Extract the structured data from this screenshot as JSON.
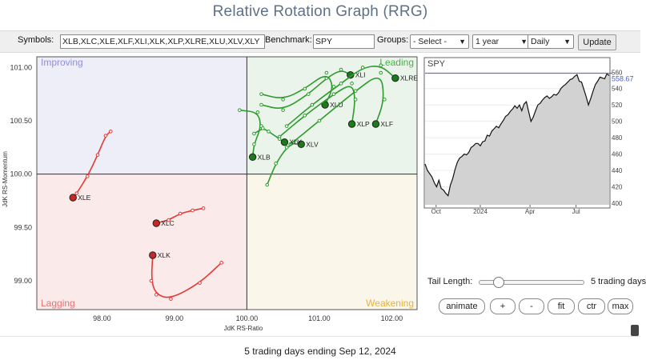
{
  "title": "Relative Rotation Graph (RRG)",
  "toolbar": {
    "symbols_label": "Symbols:",
    "symbols_value": "XLB,XLC,XLE,XLF,XLI,XLK,XLP,XLRE,XLU,XLV,XLY",
    "benchmark_label": "Benchmark:",
    "benchmark_value": "SPY",
    "groups_label": "Groups:",
    "groups_value": "- Select -",
    "period_value": "1 year",
    "frequency_value": "Daily",
    "update_label": "Update"
  },
  "rrg": {
    "quadrants": {
      "improving": "Improving",
      "leading": "Leading",
      "lagging": "Lagging",
      "weakening": "Weakening"
    },
    "quadrant_colors": {
      "improving": "#eeeef8",
      "leading": "#eaf4ea",
      "lagging": "#faeaea",
      "weakening": "#faf6ea"
    },
    "x_label": "JdK RS-Ratio",
    "y_label": "JdK RS-Momentum",
    "x_ticks": [
      "98.00",
      "99.00",
      "100.00",
      "101.00",
      "102.00"
    ],
    "y_ticks": [
      "101.00",
      "100.50",
      "100.00",
      "99.50",
      "99.00"
    ],
    "x_range": [
      97.1,
      102.35
    ],
    "y_range": [
      98.73,
      101.1
    ],
    "series": [
      {
        "name": "XLE",
        "color": "#e53935",
        "points": [
          [
            98.12,
            100.4
          ],
          [
            98.05,
            100.36
          ],
          [
            97.94,
            100.18
          ],
          [
            97.8,
            99.98
          ],
          [
            97.65,
            99.82
          ],
          [
            97.6,
            99.78
          ]
        ]
      },
      {
        "name": "XLC",
        "color": "#e53935",
        "points": [
          [
            99.4,
            99.68
          ],
          [
            99.25,
            99.66
          ],
          [
            99.08,
            99.63
          ],
          [
            98.92,
            99.57
          ],
          [
            98.75,
            99.54
          ]
        ]
      },
      {
        "name": "XLK",
        "color": "#e53935",
        "points": [
          [
            99.65,
            99.17
          ],
          [
            99.35,
            98.98
          ],
          [
            98.95,
            98.83
          ],
          [
            98.75,
            98.87
          ],
          [
            98.68,
            99.0
          ],
          [
            98.7,
            99.24
          ]
        ]
      },
      {
        "name": "XLB",
        "color": "#2e9b2e",
        "points": [
          [
            99.9,
            100.6
          ],
          [
            100.15,
            100.58
          ],
          [
            100.2,
            100.45
          ],
          [
            100.1,
            100.28
          ],
          [
            100.08,
            100.16
          ]
        ]
      },
      {
        "name": "XLI",
        "color": "#2e9b2e",
        "points": [
          [
            100.2,
            100.65
          ],
          [
            100.5,
            100.6
          ],
          [
            100.85,
            100.75
          ],
          [
            101.1,
            100.9
          ],
          [
            101.3,
            100.98
          ],
          [
            101.43,
            100.93
          ]
        ]
      },
      {
        "name": "XLRE",
        "color": "#2e9b2e",
        "points": [
          [
            100.55,
            100.45
          ],
          [
            100.9,
            100.65
          ],
          [
            101.3,
            100.85
          ],
          [
            101.6,
            101.0
          ],
          [
            101.85,
            101.02
          ],
          [
            102.05,
            100.9
          ]
        ]
      },
      {
        "name": "XLU",
        "color": "#2e9b2e",
        "points": [
          [
            100.2,
            100.75
          ],
          [
            100.5,
            100.7
          ],
          [
            100.8,
            100.8
          ],
          [
            101.1,
            100.95
          ],
          [
            101.2,
            100.82
          ],
          [
            101.08,
            100.65
          ]
        ]
      },
      {
        "name": "XLP",
        "color": "#2e9b2e",
        "points": [
          [
            100.45,
            100.35
          ],
          [
            100.8,
            100.55
          ],
          [
            101.2,
            100.75
          ],
          [
            101.45,
            100.85
          ],
          [
            101.5,
            100.7
          ],
          [
            101.45,
            100.47
          ]
        ]
      },
      {
        "name": "XLF",
        "color": "#2e9b2e",
        "points": [
          [
            100.6,
            100.28
          ],
          [
            101.0,
            100.5
          ],
          [
            101.5,
            100.78
          ],
          [
            101.85,
            100.95
          ],
          [
            101.9,
            100.7
          ],
          [
            101.78,
            100.47
          ]
        ]
      },
      {
        "name": "XLV",
        "color": "#2e9b2e",
        "points": [
          [
            100.28,
            99.9
          ],
          [
            100.4,
            100.1
          ],
          [
            100.55,
            100.25
          ],
          [
            100.68,
            100.3
          ],
          [
            100.75,
            100.28
          ]
        ]
      },
      {
        "name": "XLY",
        "color": "#2e9b2e",
        "points": [
          [
            100.1,
            100.38
          ],
          [
            100.22,
            100.43
          ],
          [
            100.3,
            100.4
          ],
          [
            100.45,
            100.33
          ],
          [
            100.52,
            100.3
          ]
        ]
      }
    ]
  },
  "spy": {
    "symbol": "SPY",
    "last_value": "558.67",
    "y_ticks": [
      "400",
      "420",
      "440",
      "460",
      "480",
      "500",
      "520",
      "540",
      "560"
    ],
    "x_ticks": [
      "Oct",
      "2024",
      "Apr",
      "Jul"
    ],
    "y_range": [
      398,
      572
    ],
    "prices": [
      448,
      440,
      436,
      432,
      425,
      420,
      428,
      418,
      416,
      412,
      409,
      422,
      430,
      441,
      450,
      455,
      457,
      460,
      459,
      462,
      468,
      470,
      473,
      473,
      470,
      475,
      476,
      483,
      482,
      488,
      491,
      494,
      492,
      497,
      501,
      506,
      508,
      512,
      515,
      519,
      516,
      520,
      513,
      521,
      524,
      512,
      500,
      505,
      513,
      520,
      522,
      526,
      529,
      531,
      528,
      530,
      533,
      532,
      535,
      540,
      543,
      545,
      548,
      551,
      552,
      555,
      557,
      549,
      548,
      539,
      530,
      520,
      528,
      537,
      545,
      549,
      554,
      553,
      552,
      558,
      556
    ]
  },
  "controls": {
    "tail_length_label": "Tail Length:",
    "tail_value": "5 trading days",
    "tail_fraction": 0.18,
    "buttons": [
      "animate",
      "+",
      "-",
      "fit",
      "ctr",
      "max"
    ]
  },
  "footer": "5 trading days ending Sep 12, 2024"
}
